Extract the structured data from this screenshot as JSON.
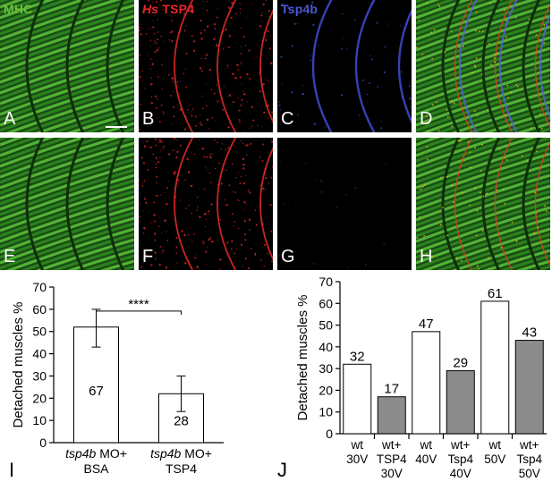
{
  "panels": {
    "A": {
      "letter": "A",
      "title": "MHC",
      "title_color": "#6fbf3c"
    },
    "B": {
      "letter": "B",
      "title_hs": "Hs",
      "title_rest": " TSP4",
      "title_color": "#e8262a"
    },
    "C": {
      "letter": "C",
      "title": "Tsp4b",
      "title_color": "#4a58d8"
    },
    "D": {
      "letter": "D"
    },
    "E": {
      "letter": "E"
    },
    "F": {
      "letter": "F"
    },
    "G": {
      "letter": "G"
    },
    "H": {
      "letter": "H"
    }
  },
  "colors": {
    "muscle": "#2f8a22",
    "muscle_light": "#5cc43d",
    "red": "#e02828",
    "blue": "#3c48c8",
    "gray_bar": "#8c8c8c"
  },
  "chart_data": [
    {
      "type": "bar",
      "panel_letter": "I",
      "ylabel": "Detached muscles %",
      "ylim": [
        0,
        70
      ],
      "yticks": [
        0,
        10,
        20,
        30,
        40,
        50,
        60,
        70
      ],
      "categories": [
        {
          "italic": "tsp4b",
          "rest": " MO+",
          "line2": "BSA"
        },
        {
          "italic": "tsp4b",
          "rest": " MO+",
          "line2": "TSP4"
        }
      ],
      "values": [
        52,
        22
      ],
      "errors": [
        [
          43,
          60
        ],
        [
          14,
          30
        ]
      ],
      "bar_labels": [
        "67",
        "28"
      ],
      "significance": "****"
    },
    {
      "type": "bar",
      "panel_letter": "J",
      "ylabel": "Detached muscles %",
      "ylim": [
        0,
        70
      ],
      "yticks": [
        0,
        10,
        20,
        30,
        40,
        50,
        60,
        70
      ],
      "categories": [
        {
          "lines": [
            "wt",
            "30V"
          ],
          "fill": "white"
        },
        {
          "lines": [
            "wt+",
            "TSP4",
            "30V"
          ],
          "fill": "gray"
        },
        {
          "lines": [
            "wt",
            "40V"
          ],
          "fill": "white"
        },
        {
          "lines": [
            "wt+",
            "Tsp4",
            "40V"
          ],
          "fill": "gray"
        },
        {
          "lines": [
            "wt",
            "50V"
          ],
          "fill": "white"
        },
        {
          "lines": [
            "wt+",
            "Tsp4",
            "50V"
          ],
          "fill": "gray"
        }
      ],
      "values": [
        32,
        17,
        47,
        29,
        61,
        43
      ],
      "bar_labels": [
        "32",
        "17",
        "47",
        "29",
        "61",
        "43"
      ]
    }
  ]
}
